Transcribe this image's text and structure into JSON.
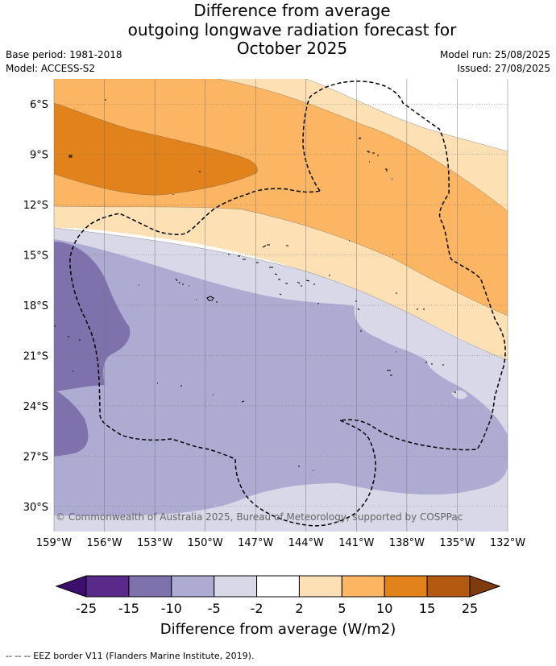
{
  "title": {
    "line1": "Difference from average",
    "line2": "outgoing longwave radiation forecast for",
    "line3": "October 2025"
  },
  "meta": {
    "base_period": "Base period: 1981-2018",
    "model": "Model: ACCESS-S2",
    "model_run": "Model run: 25/08/2025",
    "issued": "Issued: 27/08/2025"
  },
  "map": {
    "lon_range": [
      -159,
      -132
    ],
    "lat_range": [
      -31.5,
      -4.5
    ],
    "lat_labels": [
      "6°S",
      "9°S",
      "12°S",
      "15°S",
      "18°S",
      "21°S",
      "24°S",
      "27°S",
      "30°S"
    ],
    "lon_labels": [
      "159°W",
      "156°W",
      "153°W",
      "150°W",
      "147°W",
      "144°W",
      "141°W",
      "138°W",
      "135°W",
      "132°W"
    ],
    "copyright": "© Commonwealth of Australia 2025, Bureau of Meteorology, supported by COSPPac",
    "colors": {
      "n25": "#5a2a8a",
      "n15": "#7e71ac",
      "n10": "#aeabd3",
      "n5": "#d8d8e9",
      "zero": "#ffffff",
      "p2": "#fde0b3",
      "p5": "#fbb563",
      "p10": "#e1821b",
      "p15": "#b35910",
      "p25": "#7f3c0a",
      "ocean_under": "#3b0f6e"
    }
  },
  "colorbar": {
    "ticks": [
      "-25",
      "-15",
      "-10",
      "-5",
      "-2",
      "2",
      "5",
      "10",
      "15",
      "25"
    ],
    "label": "Difference from average (W/m2)",
    "colors": [
      "#5a2a8a",
      "#7e71ac",
      "#aeabd3",
      "#d8d8e9",
      "#ffffff",
      "#fde0b3",
      "#fbb563",
      "#e1821b",
      "#b35910"
    ],
    "under_color": "#3b0f6e",
    "over_color": "#7f3c0a"
  },
  "legend_note": "--  --  -- EEZ border V11 (Flanders Marine Institute, 2019)."
}
